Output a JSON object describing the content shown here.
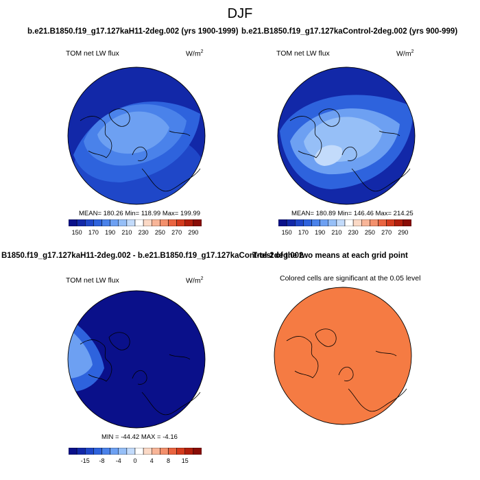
{
  "page_title": "DJF",
  "chart_data": [
    {
      "type": "heatmap",
      "id": "p1",
      "case_title": "b.e21.B1850.f19_g17.127kaH11-2deg.002 (yrs 1900-1999)",
      "panel_label": "TOM net LW flux",
      "units_base": "W/m",
      "units_exp": "2",
      "stats": {
        "mean": "180.26",
        "min": "118.99",
        "max": "199.99"
      },
      "stats_text": "MEAN= 180.26  Min= 118.99  Max= 199.99",
      "colorbar_ticks": [
        "150",
        "170",
        "190",
        "210",
        "230",
        "250",
        "270",
        "290"
      ],
      "levels": [
        150,
        160,
        170,
        180,
        190,
        200,
        210,
        220,
        230,
        240,
        250,
        260,
        270,
        280,
        290
      ],
      "region_values": [
        150,
        165,
        175,
        185,
        190
      ],
      "projection": "north polar stereographic"
    },
    {
      "type": "heatmap",
      "id": "p2",
      "case_title": "b.e21.B1850.f19_g17.127kaControl-2deg.002 (yrs 900-999)",
      "panel_label": "TOM net LW flux",
      "units_base": "W/m",
      "units_exp": "2",
      "stats": {
        "mean": "180.89",
        "min": "146.46",
        "max": "214.25"
      },
      "stats_text": "MEAN= 180.89  Min= 146.46  Max= 214.25",
      "colorbar_ticks": [
        "150",
        "170",
        "190",
        "210",
        "230",
        "250",
        "270",
        "290"
      ],
      "levels": [
        150,
        160,
        170,
        180,
        190,
        200,
        210,
        220,
        230,
        240,
        250,
        260,
        270,
        280,
        290
      ],
      "region_values": [
        155,
        175,
        190,
        200,
        210
      ],
      "projection": "north polar stereographic"
    },
    {
      "type": "heatmap",
      "id": "p3",
      "case_title": "B1850.f19_g17.127kaH11-2deg.002 - b.e21.B1850.f19_g17.127kaControl-2deg.002",
      "panel_label": "TOM net LW flux",
      "units_base": "W/m",
      "units_exp": "2",
      "stats": {
        "min": "-44.42",
        "max": "-4.16"
      },
      "stats_text": "MIN = -44.42 MAX =  -4.16",
      "colorbar_ticks": [
        "-15",
        "-8",
        "-4",
        "0",
        "4",
        "8",
        "15"
      ],
      "levels": [
        -15,
        -12,
        -10,
        -8,
        -6,
        -4,
        -2,
        0,
        2,
        4,
        6,
        8,
        10,
        12,
        15
      ],
      "region_values": [
        -20,
        -10,
        -6
      ],
      "projection": "north polar stereographic"
    },
    {
      "type": "heatmap",
      "id": "p4",
      "case_title": "T-test of the two means at each grid point",
      "panel_label": "Colored cells are significant at the 0.05 level",
      "fill_color": "#f57b43",
      "projection": "north polar stereographic"
    }
  ],
  "colors": {
    "palette": [
      "#0a108a",
      "#1228a8",
      "#1f47c8",
      "#2e63dd",
      "#4a82ea",
      "#6da0f2",
      "#96bff7",
      "#c3dbfb",
      "#ffffff",
      "#fbd9c6",
      "#f8b598",
      "#f3906c",
      "#ea6440",
      "#d43b1d",
      "#b11e0c",
      "#8a0d06"
    ],
    "coast": "#000000"
  }
}
